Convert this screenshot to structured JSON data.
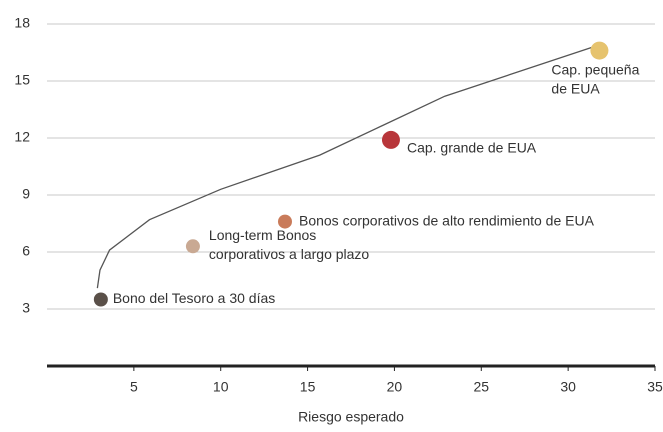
{
  "chart_data": {
    "type": "scatter",
    "x_label": "Riesgo esperado",
    "xlim": [
      0,
      35
    ],
    "xticks": [
      5,
      10,
      15,
      20,
      25,
      30,
      35
    ],
    "ylim": [
      0,
      18
    ],
    "yticks": [
      3,
      6,
      9,
      12,
      15,
      18
    ],
    "grid": true,
    "x": [
      3.1,
      8.4,
      13.7,
      19.8,
      31.8
    ],
    "y": [
      3.5,
      6.3,
      7.6,
      11.9,
      16.6
    ],
    "colors": [
      "#5a5049",
      "#c9a993",
      "#c97b5a",
      "#b8363a",
      "#e6c36e"
    ],
    "labels": [
      [
        "Bono del Tesoro a 30 días"
      ],
      [
        "Long-term Bonos",
        "corporativos a largo plazo"
      ],
      [
        "Bonos corporativos de alto rendimiento de EUA"
      ],
      [
        "Cap. grande de EUA"
      ],
      [
        "Cap. pequeña",
        "de EUA"
      ]
    ],
    "frontier": {
      "color": "#555555",
      "x": [
        2.9,
        3.05,
        3.6,
        5.9,
        10,
        15.7,
        22.9,
        31.8
      ],
      "y": [
        4.1,
        5.05,
        6.1,
        7.7,
        9.3,
        11.1,
        14.2,
        16.9
      ]
    }
  }
}
